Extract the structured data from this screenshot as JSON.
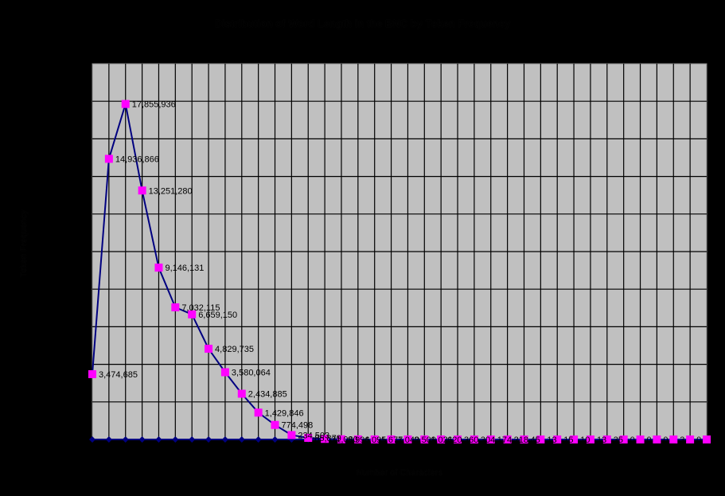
{
  "chart_data": {
    "type": "line",
    "title": "Distribution of Word Length in the BNC by Token Frequency",
    "xlabel": "Number of Characters",
    "ylabel": "Token Frequency",
    "ylim": [
      0,
      20000000
    ],
    "y_gridline_step": 2000000,
    "grid": true,
    "legend": "none",
    "plot_background": "#C0C0C0",
    "page_background": "#000000",
    "categories": [
      1,
      2,
      3,
      4,
      5,
      6,
      7,
      8,
      9,
      10,
      11,
      12,
      13,
      14,
      15,
      16,
      17,
      18,
      19,
      20,
      21,
      22,
      23,
      24,
      25,
      26,
      27,
      28,
      29,
      30,
      31,
      32,
      33,
      34,
      35,
      36,
      37,
      38
    ],
    "series": [
      {
        "name": "Token Frequency",
        "line_color": "#000080",
        "marker_color": "#FF00FF",
        "marker": "square",
        "values": [
          3474685,
          14936866,
          17855936,
          13251280,
          9146131,
          7032115,
          6659150,
          4829735,
          3580064,
          2434885,
          1429846,
          774498,
          234503,
          85879,
          31080,
          8996,
          4095,
          1677,
          1040,
          2509,
          1021,
          620,
          360,
          304,
          174,
          218,
          45,
          13,
          15,
          10,
          13,
          35,
          0,
          0,
          0,
          3,
          0,
          0
        ],
        "labels": [
          "3,474,685",
          "14,936,866",
          "17,855,936",
          "13,251,280",
          "9,146,131",
          "7,032,115",
          "6,659,150",
          "4,829,735",
          "3,580,064",
          "2,434,885",
          "1,429,846",
          "774,498",
          "234,503",
          "85,879",
          "31,080",
          "8,996",
          "4,095",
          "1,677",
          "1,040",
          "2,509",
          "1,021",
          "620",
          "360",
          "304",
          "174",
          "218",
          "45",
          "13",
          "15",
          "10",
          "13",
          "35",
          "0",
          "0",
          "0",
          "3",
          "0",
          "0"
        ]
      },
      {
        "name": "Baseline",
        "line_color": "#000080",
        "marker_color": "#000080",
        "marker": "diamond",
        "values": [
          0,
          0,
          0,
          0,
          0,
          0,
          0,
          0,
          0,
          0,
          0,
          0,
          0,
          0,
          0,
          0,
          0,
          0,
          0,
          0,
          0,
          0,
          0,
          0,
          0,
          0,
          0,
          0,
          0,
          0,
          0,
          0,
          0,
          0,
          0,
          0,
          0,
          0
        ]
      }
    ]
  }
}
